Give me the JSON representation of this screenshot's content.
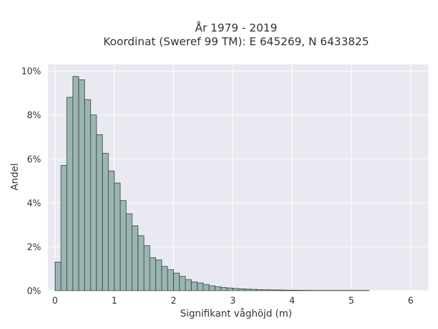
{
  "chart_data": {
    "type": "bar",
    "title_lines": [
      "År 1979 - 2019",
      "Koordinat (Sweref 99 TM): E 645269, N 6433825"
    ],
    "xlabel": "Signifikant våghöjd (m)",
    "ylabel": "Andel",
    "xlim": [
      -0.12,
      6.3
    ],
    "ylim": [
      0,
      10.3
    ],
    "x_ticks": [
      0,
      1,
      2,
      3,
      4,
      5,
      6
    ],
    "x_tick_labels": [
      "0",
      "1",
      "2",
      "3",
      "4",
      "5",
      "6"
    ],
    "y_ticks": [
      0,
      2,
      4,
      6,
      8,
      10
    ],
    "y_tick_labels": [
      "0%",
      "2%",
      "4%",
      "6%",
      "8%",
      "10%"
    ],
    "grid": true,
    "bin_width": 0.1,
    "bins_start": [
      0,
      0.1,
      0.2,
      0.3,
      0.4,
      0.5,
      0.6,
      0.7,
      0.8,
      0.9,
      1.0,
      1.1,
      1.2,
      1.3,
      1.4,
      1.5,
      1.6,
      1.7,
      1.8,
      1.9,
      2.0,
      2.1,
      2.2,
      2.3,
      2.4,
      2.5,
      2.6,
      2.7,
      2.8,
      2.9,
      3.0,
      3.1,
      3.2,
      3.3,
      3.4,
      3.5,
      3.6,
      3.7,
      3.8,
      3.9,
      4.0,
      4.1,
      4.2,
      4.3,
      4.4,
      4.5,
      4.6,
      4.7,
      4.8,
      4.9,
      5.0,
      5.1,
      5.2
    ],
    "values": [
      1.3,
      5.7,
      8.8,
      9.75,
      9.6,
      8.7,
      8.0,
      7.1,
      6.25,
      5.45,
      4.9,
      4.1,
      3.5,
      2.95,
      2.5,
      2.05,
      1.5,
      1.4,
      1.1,
      0.95,
      0.8,
      0.65,
      0.5,
      0.4,
      0.35,
      0.28,
      0.22,
      0.18,
      0.14,
      0.12,
      0.1,
      0.08,
      0.07,
      0.06,
      0.05,
      0.04,
      0.035,
      0.03,
      0.025,
      0.02,
      0.02,
      0.015,
      0.015,
      0.01,
      0.01,
      0.01,
      0.01,
      0.01,
      0.01,
      0.01,
      0.01,
      0.01,
      0.01
    ],
    "colors": {
      "plot_background": "#e9e9f1",
      "grid": "#ffffff",
      "bar_fill": "#9bb5b3",
      "bar_edge": "#2f3f3c",
      "text": "#333333"
    }
  }
}
